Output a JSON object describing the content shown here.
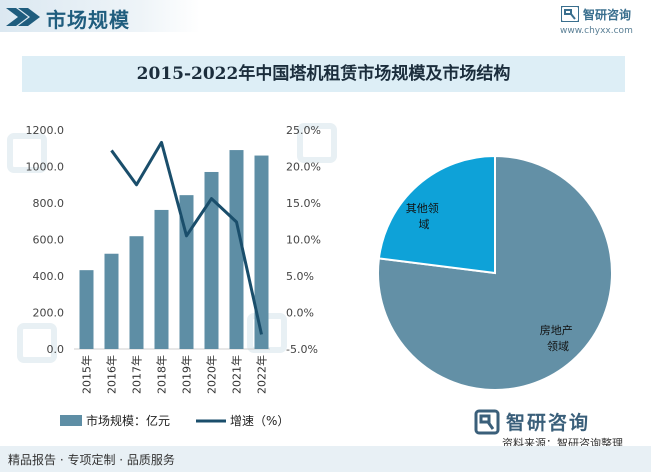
{
  "header": {
    "title": "市场规模",
    "brand_name": "智研咨询",
    "brand_site": "www.chyxx.com"
  },
  "chart_title": "2015-2022年中国塔机租赁市场规模及市场结构",
  "chart_data": [
    {
      "type": "bar",
      "combo": "bar+line",
      "categories": [
        "2015年",
        "2016年",
        "2017年",
        "2018年",
        "2019年",
        "2020年",
        "2021年",
        "2022年"
      ],
      "series": [
        {
          "name": "市场规模：亿元",
          "kind": "bar",
          "axis": "left",
          "color": "#5e8ea5",
          "values": [
            432,
            522,
            618,
            762,
            843,
            970,
            1090,
            1060
          ]
        },
        {
          "name": "增速（%）",
          "kind": "line",
          "axis": "right",
          "color": "#1a4e6b",
          "values": [
            null,
            22.2,
            17.5,
            23.3,
            10.5,
            15.6,
            12.4,
            -3.0
          ]
        }
      ],
      "y_left": {
        "range": [
          0,
          1200
        ],
        "ticks": [
          "0.0",
          "200.0",
          "400.0",
          "600.0",
          "800.0",
          "1000.0",
          "1200.0"
        ]
      },
      "y_right": {
        "range": [
          -5,
          25
        ],
        "ticks": [
          "-5.0%",
          "0.0%",
          "5.0%",
          "10.0%",
          "15.0%",
          "20.0%",
          "25.0%"
        ]
      },
      "legend": {
        "position": "bottom",
        "items": [
          "市场规模：亿元",
          "增速（%）"
        ]
      }
    },
    {
      "type": "pie",
      "slices": [
        {
          "label": "房地产领域",
          "value": 77,
          "color": "#6390a6"
        },
        {
          "label": "其他领域",
          "value": 23,
          "color": "#0ea2d8"
        }
      ]
    }
  ],
  "footer": {
    "left_text": "精品报告 · 专项定制 · 品质服务",
    "brand": "智研咨询",
    "source": "资料来源：智研咨询整理"
  },
  "colors": {
    "accent": "#1f5d7e",
    "title_bg": "#ddeef6",
    "bar": "#5e8ea5",
    "line": "#1a4e6b"
  }
}
